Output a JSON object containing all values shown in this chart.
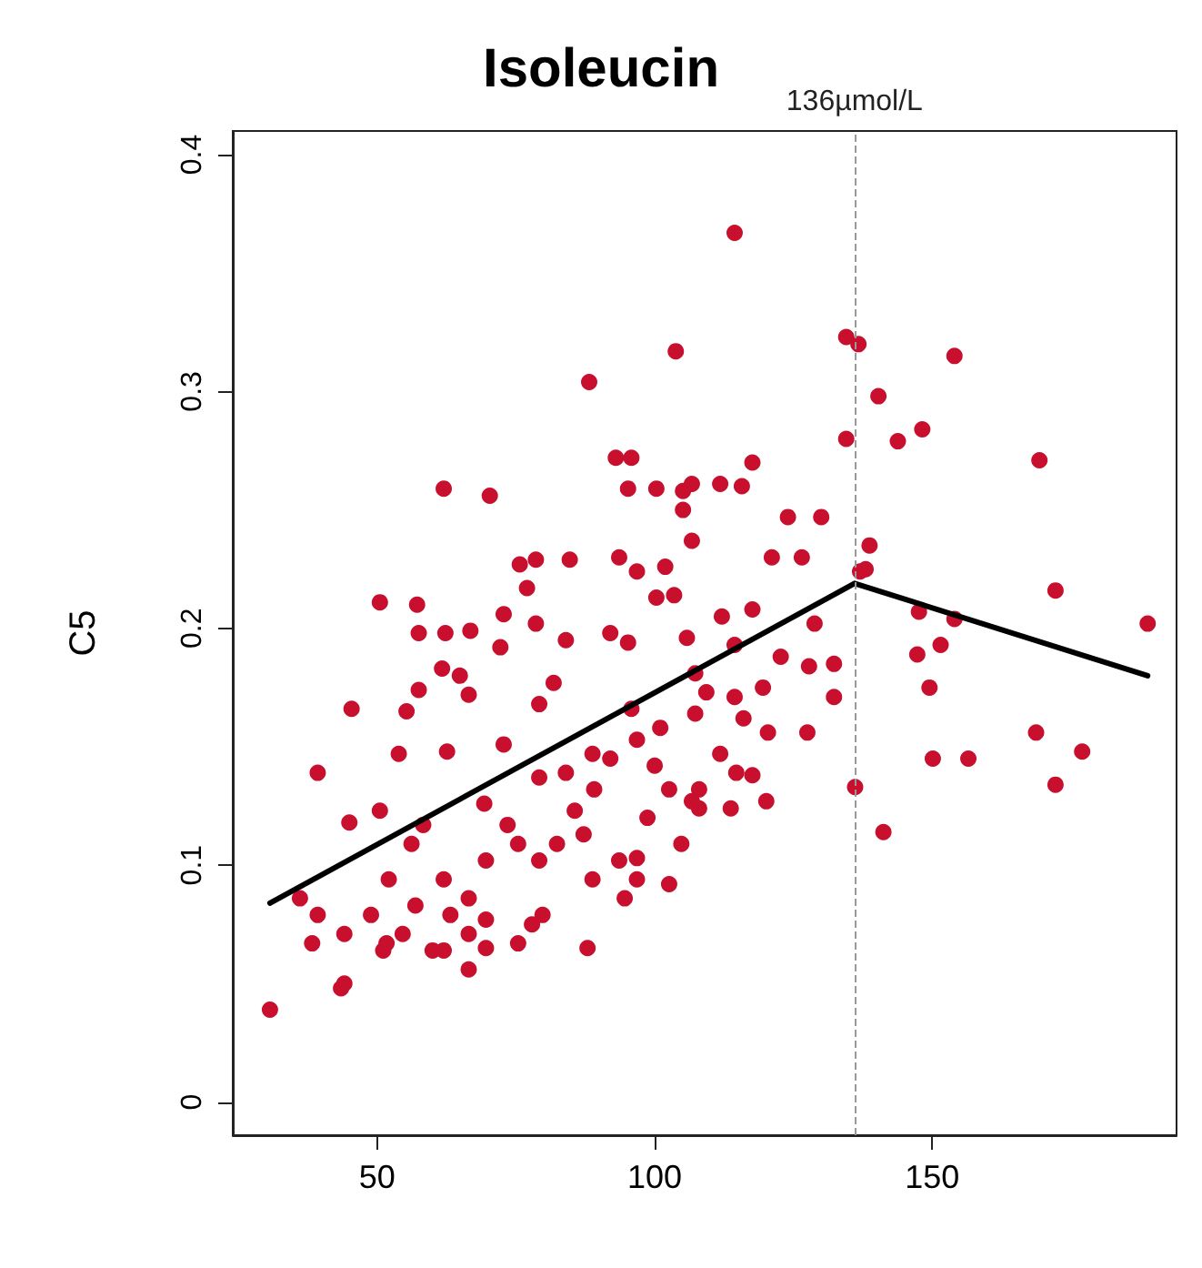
{
  "chart_data": {
    "type": "scatter",
    "title": "Isoleucin",
    "ylabel": "C5",
    "marker": "circle",
    "grid": false,
    "xlim": [
      24,
      194
    ],
    "xticks": [
      50,
      100,
      150
    ],
    "ylim": [
      -0.014,
      0.41
    ],
    "yticks": [
      0,
      0.1,
      0.2,
      0.3,
      0.4
    ],
    "ref_lines": [
      {
        "axis": "x",
        "value": 136,
        "label": "136µmol/L",
        "color": "#999999",
        "line_style": "dashed"
      }
    ],
    "series": [
      {
        "color": "#c8102e",
        "x": [
          114.4,
          134.5,
          136.7,
          154,
          140.3,
          134.5,
          143.8,
          148.2,
          169.3,
          117.6,
          115.7,
          111.8,
          106.7,
          124,
          130,
          121.1,
          126.5,
          138.7,
          138,
          172.2,
          137,
          103.8,
          88.2,
          93,
          95.8,
          62,
          70.3,
          95.2,
          100.3,
          105.1,
          105.1,
          106.7,
          78.6,
          84.7,
          75.7,
          77,
          93.6,
          96.8,
          101.9,
          100.3,
          103.5,
          50.5,
          57.2,
          62.3,
          57.5,
          66.8,
          72.8,
          78.6,
          84,
          92,
          95.2,
          81.8,
          72.2,
          64.9,
          61.7,
          66.5,
          57.5,
          55.3,
          45.4,
          53.9,
          79.2,
          72.8,
          62.6,
          69.3,
          73.5,
          39.3,
          45,
          50.5,
          56.2,
          58.3,
          62,
          66.5,
          63.2,
          69.6,
          75.4,
          79.2,
          79.8,
          36.1,
          39.3,
          44.1,
          48.9,
          52.1,
          54.6,
          56.9,
          60,
          66.5,
          69.6,
          75.4,
          77.9,
          51.1,
          38.3,
          44.1,
          51.7,
          62,
          66.5,
          69.6,
          30.7,
          43.5,
          79.2,
          84,
          88.8,
          85.6,
          82.4,
          87.2,
          88.8,
          93.6,
          96.8,
          87.9,
          94.6,
          95.8,
          101,
          100,
          89.1,
          104.8,
          102.6,
          96.8,
          98.7,
          102.6,
          106.7,
          107.3,
          108,
          107.3,
          92,
          96.8,
          112.1,
          117.6,
          105.8,
          114.4,
          128.8,
          122.7,
          132.3,
          127.8,
          109.3,
          114.4,
          119.5,
          132.3,
          116,
          120.4,
          127.5,
          111.8,
          114.7,
          117.6,
          120.1,
          108,
          113.7,
          136.1,
          141.2,
          147.6,
          154,
          147.3,
          151.5,
          149.5,
          150.1,
          156.5,
          168.7,
          177,
          172.2,
          188.8
        ],
        "values": [
          0.367,
          0.323,
          0.32,
          0.315,
          0.298,
          0.28,
          0.279,
          0.284,
          0.271,
          0.27,
          0.26,
          0.261,
          0.261,
          0.247,
          0.247,
          0.23,
          0.23,
          0.235,
          0.225,
          0.216,
          0.224,
          0.317,
          0.304,
          0.272,
          0.272,
          0.259,
          0.256,
          0.259,
          0.259,
          0.258,
          0.25,
          0.237,
          0.229,
          0.229,
          0.227,
          0.217,
          0.23,
          0.224,
          0.226,
          0.213,
          0.214,
          0.211,
          0.21,
          0.198,
          0.198,
          0.199,
          0.206,
          0.202,
          0.195,
          0.198,
          0.194,
          0.177,
          0.192,
          0.18,
          0.183,
          0.172,
          0.174,
          0.165,
          0.166,
          0.147,
          0.168,
          0.151,
          0.148,
          0.126,
          0.117,
          0.139,
          0.118,
          0.123,
          0.109,
          0.117,
          0.094,
          0.086,
          0.079,
          0.102,
          0.109,
          0.102,
          0.079,
          0.086,
          0.079,
          0.071,
          0.079,
          0.094,
          0.071,
          0.083,
          0.064,
          0.071,
          0.077,
          0.067,
          0.075,
          0.064,
          0.067,
          0.05,
          0.067,
          0.064,
          0.056,
          0.065,
          0.039,
          0.048,
          0.137,
          0.139,
          0.147,
          0.123,
          0.109,
          0.113,
          0.094,
          0.102,
          0.094,
          0.065,
          0.086,
          0.166,
          0.158,
          0.142,
          0.132,
          0.109,
          0.092,
          0.103,
          0.12,
          0.132,
          0.127,
          0.181,
          0.132,
          0.164,
          0.145,
          0.153,
          0.205,
          0.208,
          0.196,
          0.193,
          0.202,
          0.188,
          0.185,
          0.184,
          0.173,
          0.171,
          0.175,
          0.171,
          0.162,
          0.156,
          0.156,
          0.147,
          0.139,
          0.138,
          0.127,
          0.124,
          0.124,
          0.133,
          0.114,
          0.207,
          0.204,
          0.189,
          0.193,
          0.175,
          0.145,
          0.145,
          0.156,
          0.148,
          0.134,
          0.202
        ]
      },
      {
        "type": "line",
        "color": "#000000",
        "marker": "none",
        "x": [
          30.7,
          136,
          188.8
        ],
        "values": [
          0.084,
          0.219,
          0.18
        ]
      }
    ]
  }
}
